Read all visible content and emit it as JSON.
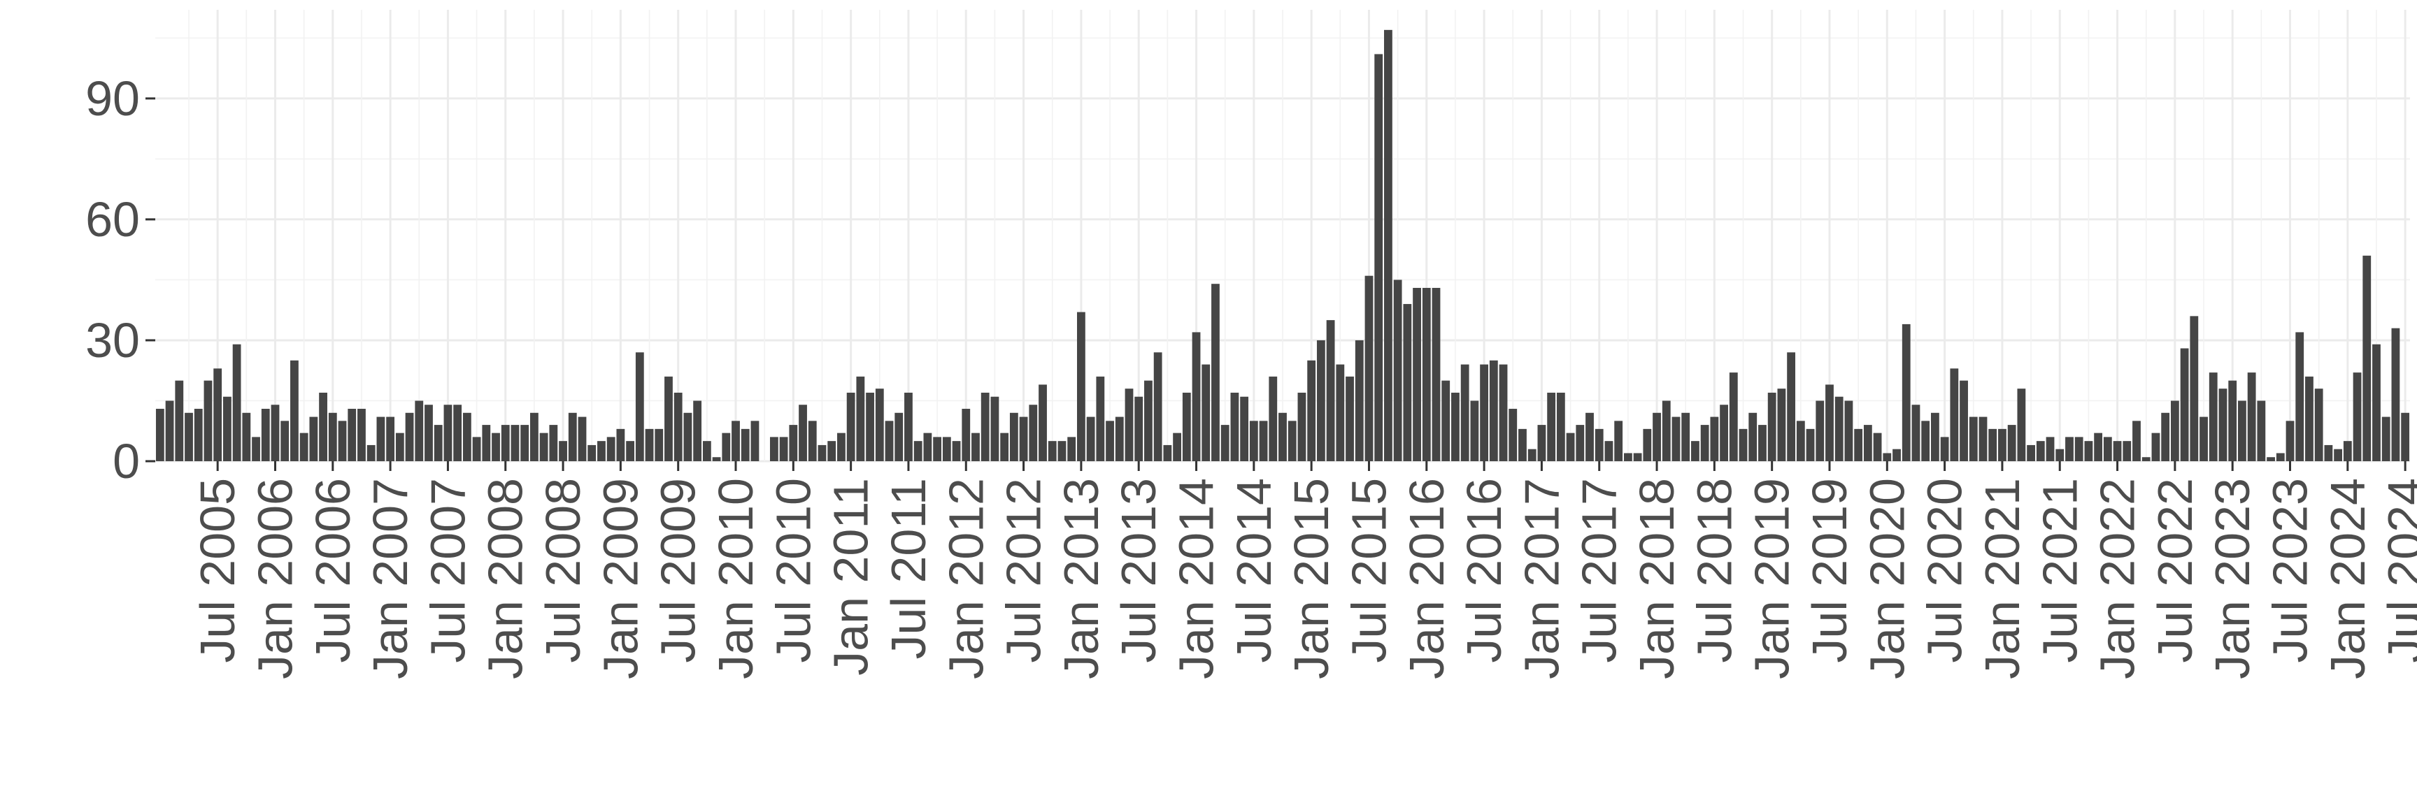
{
  "chart_data": {
    "type": "bar",
    "title": "",
    "xlabel": "",
    "ylabel": "",
    "x_start": "2005-01",
    "x_end": "2024-08",
    "y_ticks": [
      0,
      30,
      60,
      90
    ],
    "ylim": [
      0,
      112
    ],
    "grid": true,
    "x_tick_labels": [
      "Jul 2005",
      "Jan 2006",
      "Jul 2006",
      "Jan 2007",
      "Jul 2007",
      "Jan 2008",
      "Jul 2008",
      "Jan 2009",
      "Jul 2009",
      "Jan 2010",
      "Jul 2010",
      "Jan 2011",
      "Jul 2011",
      "Jan 2012",
      "Jul 2012",
      "Jan 2013",
      "Jul 2013",
      "Jan 2014",
      "Jul 2014",
      "Jan 2015",
      "Jul 2015",
      "Jan 2016",
      "Jul 2016",
      "Jan 2017",
      "Jul 2017",
      "Jan 2018",
      "Jul 2018",
      "Jan 2019",
      "Jul 2019",
      "Jan 2020",
      "Jul 2020",
      "Jan 2021",
      "Jul 2021",
      "Jan 2022",
      "Jul 2022",
      "Jan 2023",
      "Jul 2023",
      "Jan 2024",
      "Jul 2024"
    ],
    "values": [
      13,
      15,
      20,
      12,
      13,
      20,
      23,
      16,
      29,
      12,
      6,
      13,
      14,
      10,
      25,
      7,
      11,
      17,
      12,
      10,
      13,
      13,
      4,
      11,
      11,
      7,
      12,
      15,
      14,
      9,
      14,
      14,
      12,
      6,
      9,
      7,
      9,
      9,
      9,
      12,
      7,
      9,
      5,
      12,
      11,
      4,
      5,
      6,
      8,
      5,
      27,
      8,
      8,
      21,
      17,
      12,
      15,
      5,
      1,
      7,
      10,
      8,
      10,
      0,
      6,
      6,
      9,
      14,
      10,
      4,
      5,
      7,
      17,
      21,
      17,
      18,
      10,
      12,
      17,
      5,
      7,
      6,
      6,
      5,
      13,
      7,
      17,
      16,
      7,
      12,
      11,
      14,
      19,
      5,
      5,
      6,
      37,
      11,
      21,
      10,
      11,
      18,
      16,
      20,
      27,
      4,
      7,
      17,
      32,
      24,
      44,
      9,
      17,
      16,
      10,
      10,
      21,
      12,
      10,
      17,
      25,
      30,
      35,
      24,
      21,
      30,
      46,
      101,
      107,
      45,
      39,
      43,
      43,
      43,
      20,
      17,
      24,
      15,
      24,
      25,
      24,
      13,
      8,
      3,
      9,
      17,
      17,
      7,
      9,
      12,
      8,
      5,
      10,
      2,
      2,
      8,
      12,
      15,
      11,
      12,
      5,
      9,
      11,
      14,
      22,
      8,
      12,
      9,
      17,
      18,
      27,
      10,
      8,
      15,
      19,
      16,
      15,
      8,
      9,
      7,
      2,
      3,
      34,
      14,
      10,
      12,
      6,
      23,
      20,
      11,
      11,
      8,
      8,
      9,
      18,
      4,
      5,
      6,
      3,
      6,
      6,
      5,
      7,
      6,
      5,
      5,
      10,
      1,
      7,
      12,
      15,
      28,
      36,
      11,
      22,
      18,
      20,
      15,
      22,
      15,
      1,
      2,
      10,
      32,
      21,
      18,
      4,
      3,
      5,
      22,
      51,
      29,
      11,
      33,
      12
    ]
  }
}
